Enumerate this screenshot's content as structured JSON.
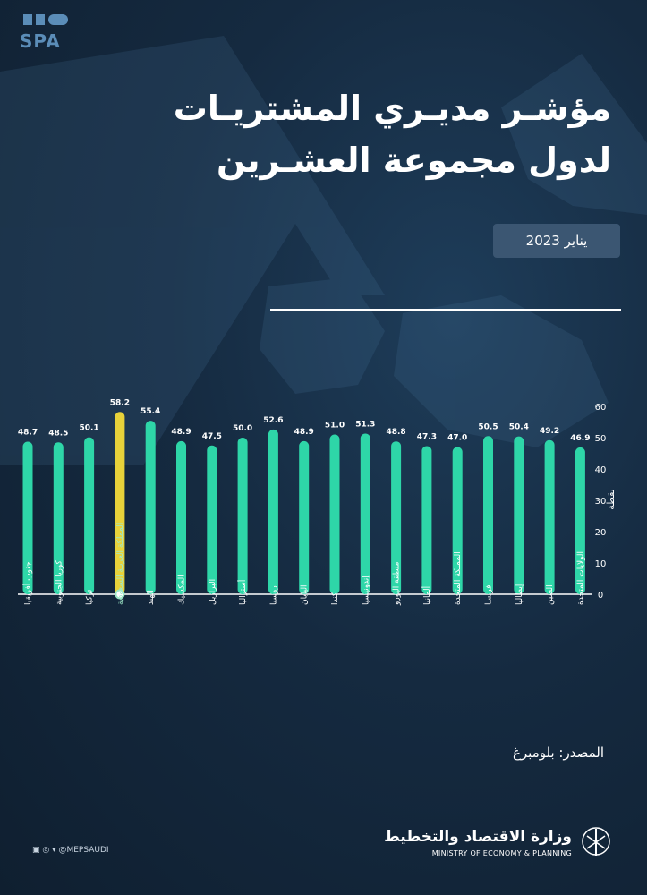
{
  "header": {
    "logo_text": "SPA",
    "title_line1": "مؤشـر مديـري المشتريـات",
    "title_line2": "لدول مجموعة العشـرين",
    "date": "يناير 2023"
  },
  "footer": {
    "source": "المصدر: بلومبرغ",
    "ministry_ar": "وزارة الاقتصاد والتخطيط",
    "ministry_en": "MINISTRY OF ECONOMY & PLANNING",
    "social_handle": "@MEPSAUDI"
  },
  "colors": {
    "bar": "#2ed6a8",
    "highlight": "#e8d23a",
    "highlight_label": "#9fe8c8",
    "background": "#152a40"
  },
  "chart_data": {
    "type": "bar",
    "title": "مؤشـر مديـري المشتريـات لدول مجموعة العشـرين",
    "ylabel": "نقطة",
    "ylim": [
      0,
      60
    ],
    "yticks": [
      0,
      10,
      20,
      30,
      40,
      50,
      60
    ],
    "grid": false,
    "highlight_index": 3,
    "categories": [
      "جنوب أفريقيا",
      "كوريا الجنوبية",
      "تركيا",
      "المملكة العربية السعودية",
      "الهند",
      "المكسيك",
      "البرازيل",
      "أستراليا",
      "روسيا",
      "اليابان",
      "كندا",
      "إندونيسيا",
      "منطقة اليورو",
      "ألمانيا",
      "المملكة المتحدة",
      "فرنسا",
      "إيطاليا",
      "الصين",
      "الولايات المتحدة"
    ],
    "values": [
      48.7,
      48.5,
      50.1,
      58.2,
      55.4,
      48.9,
      47.5,
      50.0,
      52.6,
      48.9,
      51.0,
      51.3,
      48.8,
      47.3,
      47.0,
      50.5,
      50.4,
      49.2,
      46.9
    ],
    "value_labels": [
      "48.7",
      "48.5",
      "50.1",
      "58.2",
      "55.4",
      "48.9",
      "47.5",
      "50.0",
      "52.6",
      "48.9",
      "51.0",
      "51.3",
      "48.8",
      "47.3",
      "47.0",
      "50.5",
      "50.4",
      "49.2",
      "46.9"
    ]
  }
}
